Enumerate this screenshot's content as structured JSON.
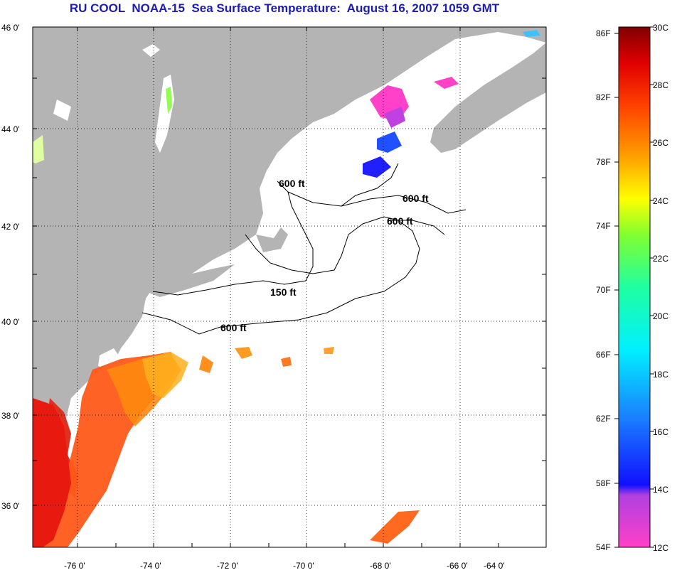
{
  "title": "RU COOL  NOAA-15  Sea Surface Temperature:  August 16, 2007 1059 GMT",
  "map": {
    "lat_labels": [
      "46 0'",
      "44 0'",
      "42 0'",
      "40 0'",
      "38 0'",
      "36 0'"
    ],
    "lon_labels": [
      "-76 0'",
      "-74 0'",
      "-72 0'",
      "-70 0'",
      "-68 0'",
      "-66 0'",
      "-64 0'"
    ],
    "contour_labels": [
      "600 ft",
      "600 ft",
      "600 ft",
      "150 ft",
      "600 ft"
    ],
    "colors": {
      "land": "#b4b4b4",
      "water_no_data": "#ffffff",
      "grid": "#000000"
    }
  },
  "colorbar": {
    "fahrenheit_labels": [
      "86F",
      "82F",
      "78F",
      "74F",
      "70F",
      "66F",
      "62F",
      "58F",
      "54F"
    ],
    "celsius_labels": [
      "30C",
      "28C",
      "26C",
      "24C",
      "22C",
      "20C",
      "18C",
      "16C",
      "14C",
      "12C"
    ]
  }
}
